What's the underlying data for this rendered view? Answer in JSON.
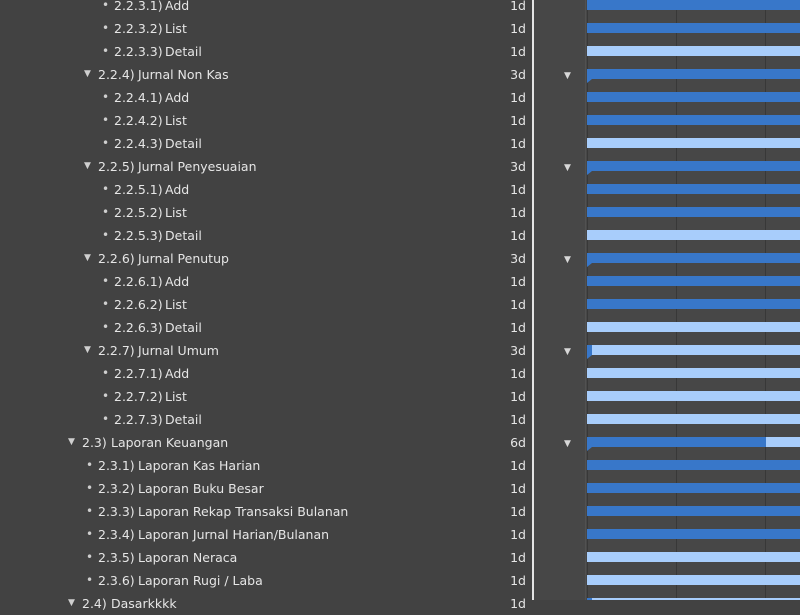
{
  "outline": {
    "rows": [
      {
        "kind": "task",
        "depth": 3,
        "number": "2.2.3.1)",
        "title": "Add",
        "duration": "1d",
        "bar": "dark",
        "progress": 1
      },
      {
        "kind": "task",
        "depth": 3,
        "number": "2.2.3.2)",
        "title": "List",
        "duration": "1d",
        "bar": "dark",
        "progress": 1
      },
      {
        "kind": "task",
        "depth": 3,
        "number": "2.2.3.3)",
        "title": "Detail",
        "duration": "1d",
        "bar": "light",
        "progress": 0
      },
      {
        "kind": "group",
        "depth": 2,
        "number": "2.2.4)",
        "title": "Jurnal Non Kas",
        "duration": "3d",
        "progress": 1
      },
      {
        "kind": "task",
        "depth": 3,
        "number": "2.2.4.1)",
        "title": "Add",
        "duration": "1d",
        "bar": "dark",
        "progress": 1
      },
      {
        "kind": "task",
        "depth": 3,
        "number": "2.2.4.2)",
        "title": "List",
        "duration": "1d",
        "bar": "dark",
        "progress": 1
      },
      {
        "kind": "task",
        "depth": 3,
        "number": "2.2.4.3)",
        "title": "Detail",
        "duration": "1d",
        "bar": "light",
        "progress": 0
      },
      {
        "kind": "group",
        "depth": 2,
        "number": "2.2.5)",
        "title": "Jurnal Penyesuaian",
        "duration": "3d",
        "progress": 1
      },
      {
        "kind": "task",
        "depth": 3,
        "number": "2.2.5.1)",
        "title": "Add",
        "duration": "1d",
        "bar": "dark",
        "progress": 1
      },
      {
        "kind": "task",
        "depth": 3,
        "number": "2.2.5.2)",
        "title": "List",
        "duration": "1d",
        "bar": "dark",
        "progress": 1
      },
      {
        "kind": "task",
        "depth": 3,
        "number": "2.2.5.3)",
        "title": "Detail",
        "duration": "1d",
        "bar": "light",
        "progress": 0
      },
      {
        "kind": "group",
        "depth": 2,
        "number": "2.2.6)",
        "title": "Jurnal Penutup",
        "duration": "3d",
        "progress": 1
      },
      {
        "kind": "task",
        "depth": 3,
        "number": "2.2.6.1)",
        "title": "Add",
        "duration": "1d",
        "bar": "dark",
        "progress": 1
      },
      {
        "kind": "task",
        "depth": 3,
        "number": "2.2.6.2)",
        "title": "List",
        "duration": "1d",
        "bar": "dark",
        "progress": 1
      },
      {
        "kind": "task",
        "depth": 3,
        "number": "2.2.6.3)",
        "title": "Detail",
        "duration": "1d",
        "bar": "light",
        "progress": 0
      },
      {
        "kind": "group",
        "depth": 2,
        "number": "2.2.7)",
        "title": "Jurnal Umum",
        "duration": "3d",
        "progress": 0
      },
      {
        "kind": "task",
        "depth": 3,
        "number": "2.2.7.1)",
        "title": "Add",
        "duration": "1d",
        "bar": "light",
        "progress": 0
      },
      {
        "kind": "task",
        "depth": 3,
        "number": "2.2.7.2)",
        "title": "List",
        "duration": "1d",
        "bar": "light",
        "progress": 0
      },
      {
        "kind": "task",
        "depth": 3,
        "number": "2.2.7.3)",
        "title": "Detail",
        "duration": "1d",
        "bar": "light",
        "progress": 0
      },
      {
        "kind": "group",
        "depth": 1,
        "number": "2.3)",
        "title": "Laporan Keuangan",
        "duration": "6d",
        "progress": 0.83
      },
      {
        "kind": "task",
        "depth": 2,
        "number": "2.3.1)",
        "title": "Laporan Kas Harian",
        "duration": "1d",
        "bar": "dark",
        "progress": 1
      },
      {
        "kind": "task",
        "depth": 2,
        "number": "2.3.2)",
        "title": "Laporan Buku Besar",
        "duration": "1d",
        "bar": "dark",
        "progress": 1
      },
      {
        "kind": "task",
        "depth": 2,
        "number": "2.3.3)",
        "title": "Laporan Rekap Transaksi Bulanan",
        "duration": "1d",
        "bar": "dark",
        "progress": 1
      },
      {
        "kind": "task",
        "depth": 2,
        "number": "2.3.4)",
        "title": "Laporan Jurnal Harian/Bulanan",
        "duration": "1d",
        "bar": "dark",
        "progress": 1
      },
      {
        "kind": "task",
        "depth": 2,
        "number": "2.3.5)",
        "title": "Laporan Neraca",
        "duration": "1d",
        "bar": "light",
        "progress": 0
      },
      {
        "kind": "task",
        "depth": 2,
        "number": "2.3.6)",
        "title": "Laporan Rugi / Laba",
        "duration": "1d",
        "bar": "light",
        "progress": 0
      },
      {
        "kind": "group",
        "depth": 1,
        "number": "2.4)",
        "title": "Dasarkkkk",
        "duration": "1d",
        "progress": 0
      }
    ]
  },
  "icons": {
    "disclosure": "▼",
    "bullet": "•",
    "gantt_collapse": "▼"
  },
  "colors": {
    "bar_done": "#3877c9",
    "bar_todo": "#a8cdfb",
    "background": "#424242"
  }
}
